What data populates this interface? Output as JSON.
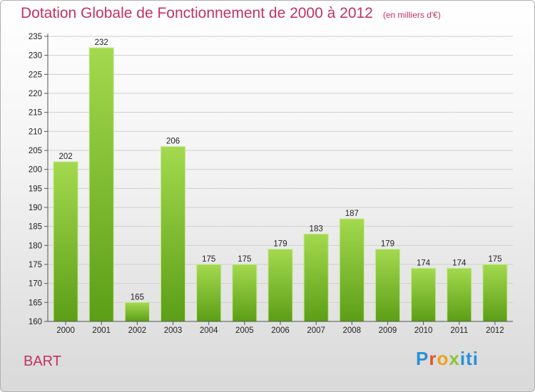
{
  "header": {
    "title": "Dotation Globale de Fonctionnement de 2000 à 2012",
    "unit": "(en milliers d'€)"
  },
  "footer": {
    "commune": "BART",
    "logo_text": "Proxiti"
  },
  "chart_data": {
    "type": "bar",
    "title": "Dotation Globale de Fonctionnement de 2000 à 2012",
    "subtitle": "(en milliers d'€)",
    "categories": [
      "2000",
      "2001",
      "2002",
      "2003",
      "2004",
      "2005",
      "2006",
      "2007",
      "2008",
      "2009",
      "2010",
      "2011",
      "2012"
    ],
    "values": [
      202,
      232,
      165,
      206,
      175,
      175,
      179,
      183,
      187,
      179,
      174,
      174,
      175
    ],
    "ylim": [
      160,
      235
    ],
    "yticks": [
      160,
      165,
      170,
      175,
      180,
      185,
      190,
      195,
      200,
      205,
      210,
      215,
      220,
      225,
      230,
      235
    ],
    "grid": true,
    "bar_color": "#7cc02a"
  }
}
